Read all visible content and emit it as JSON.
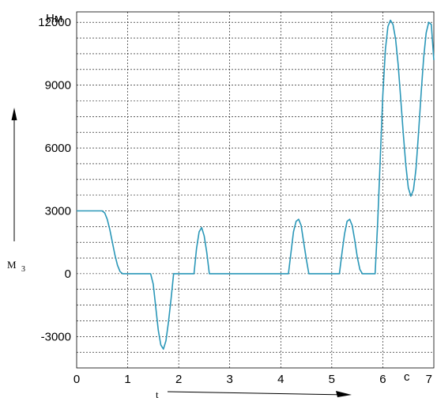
{
  "chart_data": {
    "type": "line",
    "y_unit": "Нм",
    "x_unit": "с",
    "y_label": "M",
    "y_label_sub": "3",
    "x_label": "t",
    "xlim": [
      0,
      7
    ],
    "ylim": [
      -4500,
      12500
    ],
    "x_ticks": [
      0,
      1,
      2,
      3,
      4,
      5,
      6,
      7
    ],
    "x_tick_labels": [
      "0",
      "1",
      "2",
      "3",
      "4",
      "5",
      "6",
      "7"
    ],
    "y_ticks": [
      -3000,
      0,
      3000,
      6000,
      9000,
      12000
    ],
    "y_tick_labels": [
      "-3000",
      "0",
      "3000",
      "6000",
      "9000",
      "12000"
    ],
    "grid": true,
    "series_color": "#2a97b8",
    "series": [
      {
        "x": [
          0,
          0.5,
          0.55,
          0.6,
          0.65,
          0.7,
          0.75,
          0.8,
          0.85,
          0.9,
          1.45,
          1.5,
          1.55,
          1.6,
          1.65,
          1.7,
          1.75,
          1.8,
          1.85,
          1.9,
          2.3,
          2.35,
          2.4,
          2.45,
          2.5,
          2.55,
          2.6,
          4.15,
          4.2,
          4.25,
          4.3,
          4.35,
          4.4,
          4.45,
          4.5,
          4.55,
          5.15,
          5.2,
          5.25,
          5.3,
          5.35,
          5.4,
          5.45,
          5.5,
          5.55,
          5.6,
          5.85,
          5.9,
          5.95,
          6.0,
          6.05,
          6.1,
          6.15,
          6.2,
          6.25,
          6.3,
          6.35,
          6.4,
          6.45,
          6.5,
          6.55,
          6.6,
          6.65,
          6.7,
          6.75,
          6.8,
          6.85,
          6.9,
          6.95,
          7.0
        ],
        "y": [
          3000,
          3000,
          2900,
          2600,
          2100,
          1500,
          900,
          400,
          100,
          0,
          0,
          -500,
          -1600,
          -2700,
          -3400,
          -3600,
          -3200,
          -2300,
          -1200,
          0,
          0,
          1200,
          2000,
          2200,
          1800,
          1000,
          0,
          0,
          1000,
          2000,
          2500,
          2600,
          2300,
          1500,
          700,
          0,
          0,
          1000,
          1900,
          2500,
          2600,
          2300,
          1600,
          800,
          200,
          0,
          0,
          2500,
          5500,
          8500,
          10700,
          11800,
          12100,
          11900,
          11200,
          10000,
          8400,
          6700,
          5200,
          4100,
          3700,
          4000,
          5000,
          6700,
          8600,
          10300,
          11500,
          12000,
          11900,
          10200
        ]
      }
    ]
  }
}
